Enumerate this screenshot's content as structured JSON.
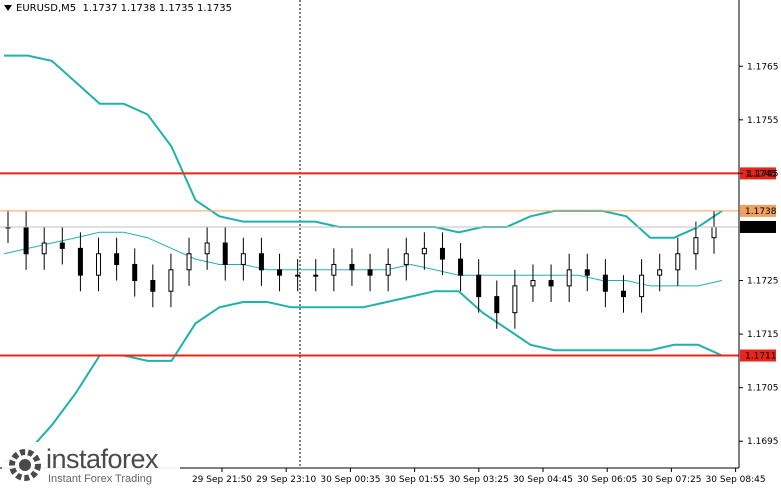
{
  "header": {
    "symbol_timeframe": "EURUSD,M5",
    "ohlc": "1.1737 1.1738 1.1735 1.1735"
  },
  "watermark": {
    "brand": "instaforex",
    "tagline": "Instant Forex Trading"
  },
  "colors": {
    "band": "#20b2aa",
    "resistance_line": "#e8251a",
    "bid_line": "#f0a060",
    "current_price_tag": "#000000",
    "candles": "#000000"
  },
  "chart_data": {
    "type": "candlestick",
    "symbol": "EURUSD",
    "timeframe": "M5",
    "ylim": [
      1.169,
      1.1777
    ],
    "y_ticks": [
      "1.1765",
      "1.1755",
      "1.1745",
      "1.1725",
      "1.1715",
      "1.1705",
      "1.1695"
    ],
    "x_ticks": [
      "29 Sep 21:50",
      "29 Sep 23:10",
      "30 Sep 00:35",
      "30 Sep 01:55",
      "30 Sep 03:25",
      "30 Sep 04:45",
      "30 Sep 06:05",
      "30 Sep 07:25",
      "30 Sep 08:45"
    ],
    "horizontal_lines": [
      {
        "price": 1.1745,
        "label": "1.1745",
        "color": "#e8251a"
      },
      {
        "price": 1.1711,
        "label": "1.1711",
        "color": "#e8251a"
      },
      {
        "price": 1.1738,
        "label": "1.1738",
        "color": "#f0a060"
      }
    ],
    "current_price": {
      "price": 1.1735,
      "label": "1.1735"
    },
    "bollinger": {
      "upper": [
        1.1767,
        1.1767,
        1.1766,
        1.1762,
        1.1758,
        1.1758,
        1.1756,
        1.175,
        1.174,
        1.1737,
        1.1736,
        1.1736,
        1.1736,
        1.1736,
        1.1735,
        1.1735,
        1.1735,
        1.1735,
        1.1735,
        1.1734,
        1.1735,
        1.1735,
        1.1737,
        1.1738,
        1.1738,
        1.1738,
        1.1737,
        1.1733,
        1.1733,
        1.1735,
        1.1738
      ],
      "middle": [
        1.173,
        1.1731,
        1.1732,
        1.1733,
        1.1734,
        1.1734,
        1.1733,
        1.1731,
        1.1729,
        1.1728,
        1.1728,
        1.1727,
        1.1727,
        1.1727,
        1.1727,
        1.1727,
        1.1727,
        1.1728,
        1.1727,
        1.1726,
        1.1726,
        1.1726,
        1.1726,
        1.1726,
        1.1726,
        1.1725,
        1.1725,
        1.1724,
        1.1724,
        1.1724,
        1.1725
      ],
      "lower": [
        1.1691,
        1.1693,
        1.1698,
        1.1704,
        1.1711,
        1.1711,
        1.171,
        1.171,
        1.1717,
        1.172,
        1.1721,
        1.1721,
        1.172,
        1.172,
        1.172,
        1.172,
        1.1721,
        1.1722,
        1.1723,
        1.1723,
        1.1719,
        1.1716,
        1.1713,
        1.1712,
        1.1712,
        1.1712,
        1.1712,
        1.1712,
        1.1713,
        1.1713,
        1.1711
      ]
    },
    "close": [
      1.1735,
      1.173,
      1.1732,
      1.1731,
      1.1726,
      1.173,
      1.1728,
      1.1725,
      1.1723,
      1.1727,
      1.173,
      1.1732,
      1.1728,
      1.173,
      1.1727,
      1.1726,
      1.1726,
      1.1726,
      1.1728,
      1.1727,
      1.1726,
      1.1728,
      1.173,
      1.1731,
      1.1729,
      1.1726,
      1.1722,
      1.1719,
      1.1724,
      1.1725,
      1.1724,
      1.1727,
      1.1726,
      1.1723,
      1.1722,
      1.1726,
      1.1727,
      1.173,
      1.1733,
      1.1735
    ]
  }
}
